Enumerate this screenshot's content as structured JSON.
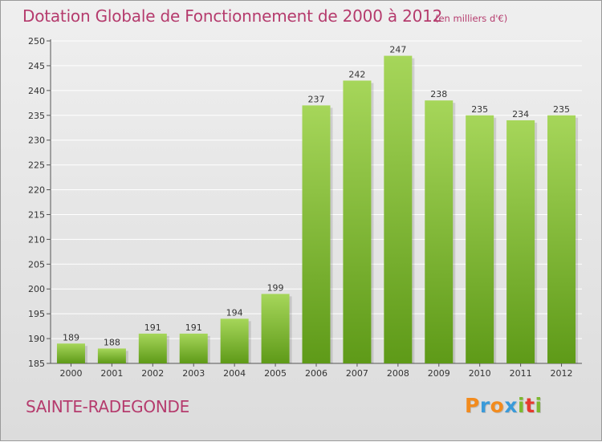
{
  "title": "Dotation Globale de Fonctionnement de 2000 à 2012",
  "subtitle": "(en milliers d'€)",
  "commune": "SAINTE-RADEGONDE",
  "logo": {
    "text": "Proxiti",
    "letters": [
      "P",
      "r",
      "o",
      "x",
      "i",
      "t",
      "i"
    ],
    "colors": [
      "#f28b1e",
      "#3a9ad9",
      "#f28b1e",
      "#3a9ad9",
      "#7cb82f",
      "#e53a2f",
      "#7cb82f"
    ]
  },
  "colors": {
    "title": "#b53b6d",
    "bar_light": "#a6d65a",
    "bar_dark": "#5e9a18",
    "axis": "#555555",
    "grid": "#ffffff"
  },
  "chart_data": {
    "type": "bar",
    "categories": [
      "2000",
      "2001",
      "2002",
      "2003",
      "2004",
      "2005",
      "2006",
      "2007",
      "2008",
      "2009",
      "2010",
      "2011",
      "2012"
    ],
    "values": [
      189,
      188,
      191,
      191,
      194,
      199,
      237,
      242,
      247,
      238,
      235,
      234,
      235
    ],
    "ylim": [
      185,
      250
    ],
    "yticks": [
      185,
      190,
      195,
      200,
      205,
      210,
      215,
      220,
      225,
      230,
      235,
      240,
      245,
      250
    ],
    "grid": true,
    "xlabel": "",
    "ylabel": ""
  }
}
